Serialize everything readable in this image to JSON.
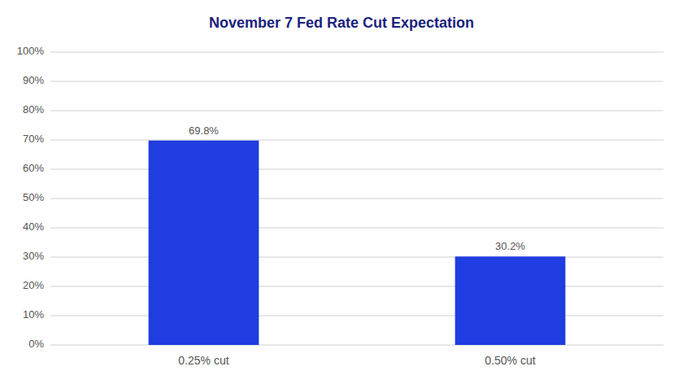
{
  "chart_data": {
    "type": "bar",
    "title": "November 7 Fed Rate Cut Expectation",
    "categories": [
      "0.25% cut",
      "0.50% cut"
    ],
    "values": [
      69.8,
      30.2
    ],
    "value_labels": [
      "69.8%",
      "30.2%"
    ],
    "data_labels": true,
    "color": "#1f3de0",
    "ylim": [
      0,
      100
    ],
    "yticks": [
      {
        "value": 0,
        "label": "0%"
      },
      {
        "value": 10,
        "label": "10%"
      },
      {
        "value": 20,
        "label": "20%"
      },
      {
        "value": 30,
        "label": "30%"
      },
      {
        "value": 40,
        "label": "40%"
      },
      {
        "value": 50,
        "label": "50%"
      },
      {
        "value": 60,
        "label": "60%"
      },
      {
        "value": 70,
        "label": "70%"
      },
      {
        "value": 80,
        "label": "80%"
      },
      {
        "value": 90,
        "label": "90%"
      },
      {
        "value": 100,
        "label": "100%"
      }
    ],
    "grid": true
  }
}
